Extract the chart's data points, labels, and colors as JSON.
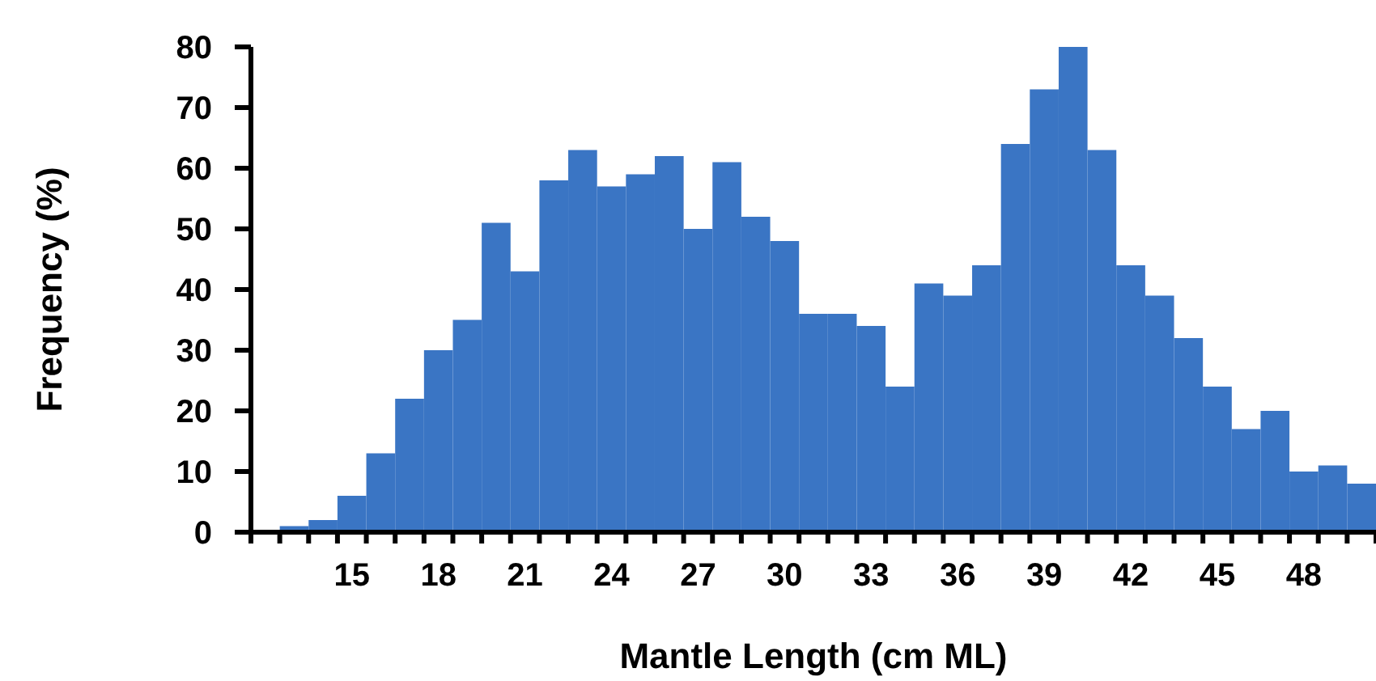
{
  "chart_data": {
    "type": "bar",
    "xlabel": "Mantle Length (cm ML)",
    "ylabel": "Frequency (%)",
    "categories": [
      null,
      null,
      null,
      "15",
      null,
      null,
      "18",
      null,
      null,
      "21",
      null,
      null,
      "24",
      null,
      null,
      "27",
      null,
      null,
      "30",
      null,
      null,
      "33",
      null,
      null,
      "36",
      null,
      null,
      "39",
      null,
      null,
      "42",
      null,
      null,
      "45",
      null,
      null,
      "48",
      null,
      null
    ],
    "values": [
      0,
      1,
      2,
      6,
      13,
      22,
      30,
      35,
      51,
      43,
      58,
      63,
      57,
      59,
      62,
      50,
      61,
      52,
      48,
      36,
      36,
      34,
      24,
      41,
      39,
      44,
      64,
      73,
      80,
      63,
      44,
      39,
      32,
      24,
      17,
      20,
      10,
      11,
      8
    ],
    "color": "#3a75c4",
    "ylim": [
      0,
      80
    ],
    "yticks": [
      0,
      10,
      20,
      30,
      40,
      50,
      60,
      70,
      80
    ]
  }
}
